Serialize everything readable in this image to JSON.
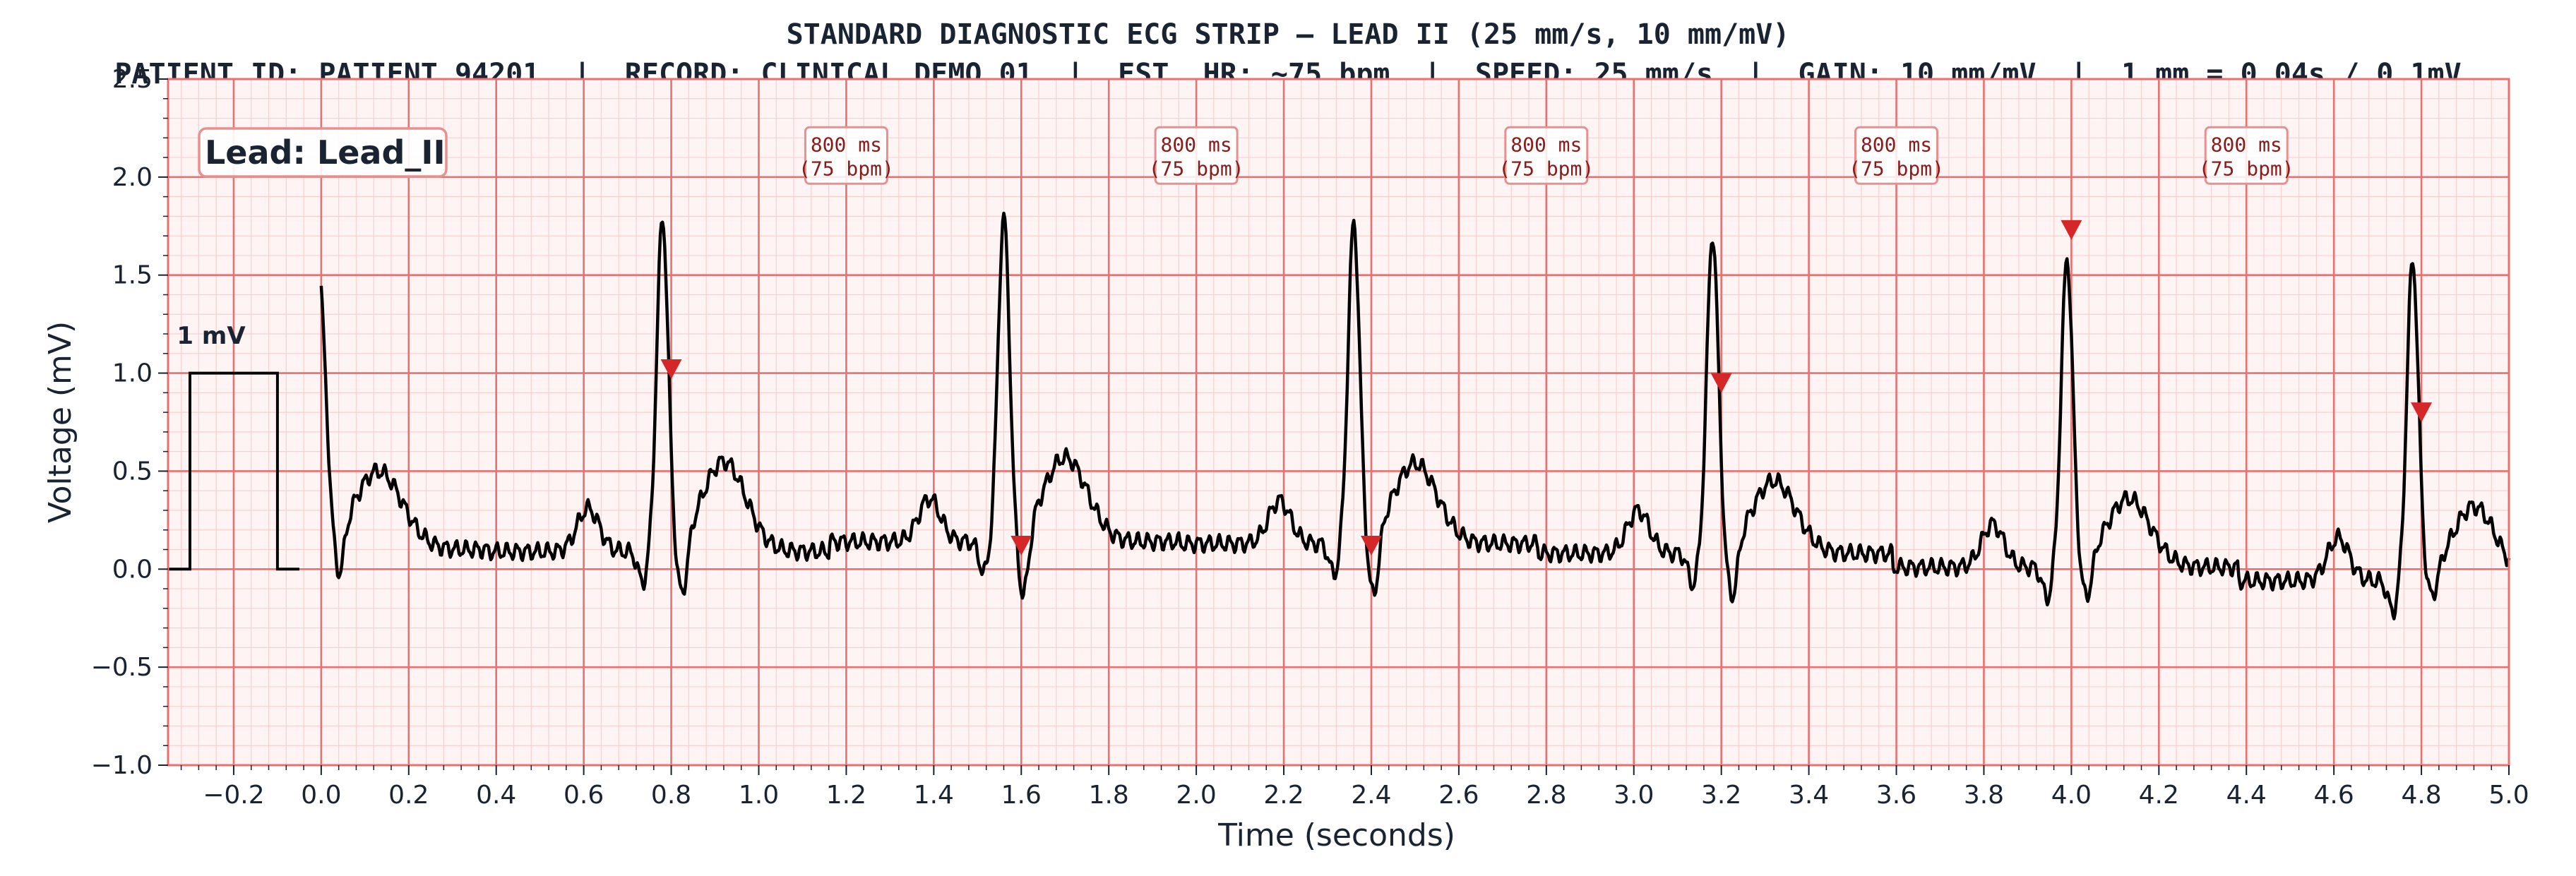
{
  "chart_data": {
    "type": "line",
    "title": "STANDARD DIAGNOSTIC ECG STRIP — LEAD II (25 mm/s, 10 mm/mV)",
    "subtitle": "PATIENT ID: PATIENT_94201  |  RECORD: CLINICAL_DEMO_01  |  EST. HR: ~75 bpm  |  SPEED: 25 mm/s  |  GAIN: 10 mm/mV  |  1 mm = 0.04s / 0.1mV",
    "xlabel": "Time (seconds)",
    "ylabel": "Voltage (mV)",
    "xlim": [
      -0.35,
      5.0
    ],
    "ylim": [
      -1.0,
      2.5
    ],
    "xticks": [
      -0.2,
      0.0,
      0.2,
      0.4,
      0.6,
      0.8,
      1.0,
      1.2,
      1.4,
      1.6,
      1.8,
      2.0,
      2.2,
      2.4,
      2.6,
      2.8,
      3.0,
      3.2,
      3.4,
      3.6,
      3.8,
      4.0,
      4.2,
      4.4,
      4.6,
      4.8,
      5.0
    ],
    "yticks": [
      -1.0,
      -0.5,
      0.0,
      0.5,
      1.0,
      1.5,
      2.0,
      2.5
    ],
    "xtick_labels": [
      "−0.2",
      "0.0",
      "0.2",
      "0.4",
      "0.6",
      "0.8",
      "1.0",
      "1.2",
      "1.4",
      "1.6",
      "1.8",
      "2.0",
      "2.2",
      "2.4",
      "2.6",
      "2.8",
      "3.0",
      "3.2",
      "3.4",
      "3.6",
      "3.8",
      "4.0",
      "4.2",
      "4.4",
      "4.6",
      "4.8",
      "5.0"
    ],
    "ytick_labels": [
      "−1.0",
      "−0.5",
      "0.0",
      "0.5",
      "1.0",
      "1.5",
      "2.0",
      "2.5"
    ],
    "grid": true,
    "lead_label": "Lead: Lead_II",
    "calibration": {
      "label": "1 mV",
      "x": [
        -0.35,
        -0.3,
        -0.3,
        -0.1,
        -0.1,
        -0.05
      ],
      "y": [
        0.0,
        0.0,
        1.0,
        1.0,
        0.0,
        0.0
      ]
    },
    "beats": [
      {
        "r_time": 0.78,
        "r_amp": 1.78,
        "t_amp": 0.55,
        "baseline": 0.09
      },
      {
        "r_time": 1.56,
        "r_amp": 1.79,
        "t_amp": 0.57,
        "baseline": 0.14
      },
      {
        "r_time": 2.36,
        "r_amp": 1.76,
        "t_amp": 0.54,
        "baseline": 0.13
      },
      {
        "r_time": 3.18,
        "r_amp": 1.7,
        "t_amp": 0.45,
        "baseline": 0.08
      },
      {
        "r_time": 3.99,
        "r_amp": 1.58,
        "t_amp": 0.36,
        "baseline": 0.01
      },
      {
        "r_time": 4.78,
        "r_amp": 1.57,
        "t_amp": 0.32,
        "baseline": -0.06
      }
    ],
    "initial_segment": {
      "start_time": 0.0,
      "start_amp": 1.63,
      "t_amp": 0.5,
      "baseline": 0.1
    },
    "markers": {
      "x": [
        0.8,
        1.6,
        2.4,
        3.2,
        4.0,
        4.8
      ],
      "y": [
        1.02,
        0.12,
        0.12,
        0.95,
        1.73,
        0.8
      ]
    },
    "rr_annotations": [
      {
        "x": 1.2,
        "line1": "800 ms",
        "line2": "(75 bpm)"
      },
      {
        "x": 2.0,
        "line1": "800 ms",
        "line2": "(75 bpm)"
      },
      {
        "x": 2.8,
        "line1": "800 ms",
        "line2": "(75 bpm)"
      },
      {
        "x": 3.6,
        "line1": "800 ms",
        "line2": "(75 bpm)"
      },
      {
        "x": 4.4,
        "line1": "800 ms",
        "line2": "(75 bpm)"
      }
    ],
    "colors": {
      "major_grid": "#e8706f",
      "minor_grid": "#f9cfcf",
      "background": "#fff4f4",
      "trace": "#000000",
      "marker": "#d62728",
      "annotation_border": "#e8908f",
      "annotation_text": "#8b1a1a",
      "text": "#1a2332"
    }
  }
}
